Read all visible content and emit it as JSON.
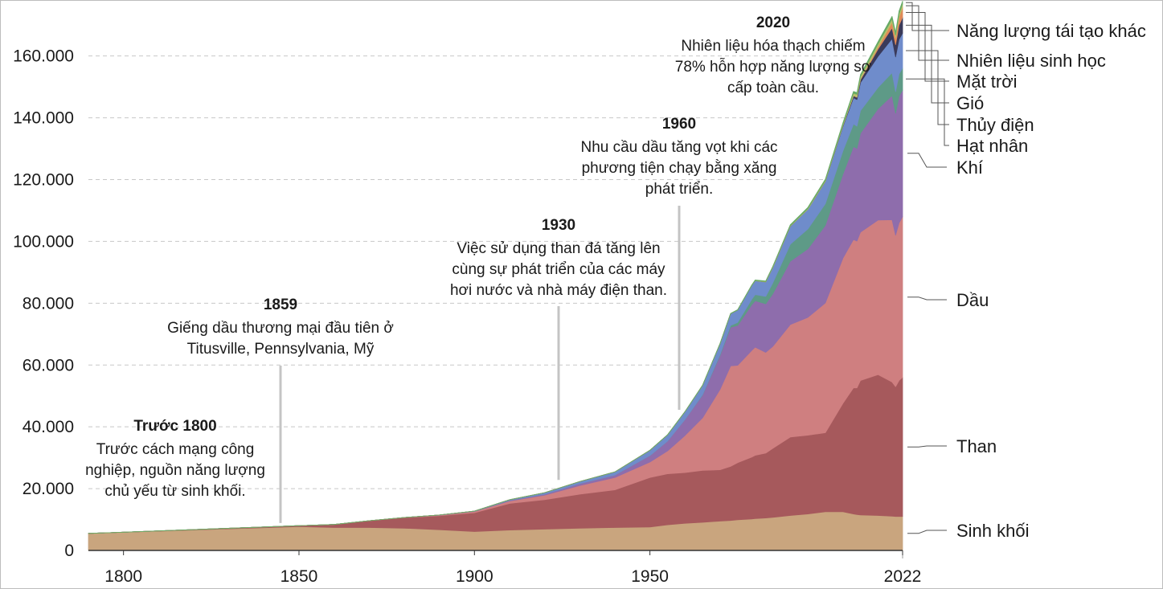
{
  "chart_data": {
    "type": "area",
    "stacked": true,
    "title": "",
    "xlabel": "",
    "ylabel": "",
    "xlim": [
      1790,
      2022
    ],
    "ylim": [
      0,
      175000
    ],
    "grid": "horizontal-dashed",
    "legend_placement": "right",
    "x_ticks": [
      {
        "value": 1800,
        "label": "1800"
      },
      {
        "value": 1850,
        "label": "1850"
      },
      {
        "value": 1900,
        "label": "1900"
      },
      {
        "value": 1950,
        "label": "1950"
      },
      {
        "value": 2022,
        "label": "2022"
      }
    ],
    "y_ticks": [
      {
        "value": 0,
        "label": "0"
      },
      {
        "value": 20000,
        "label": "20.000"
      },
      {
        "value": 40000,
        "label": "40.000"
      },
      {
        "value": 60000,
        "label": "60.000"
      },
      {
        "value": 80000,
        "label": "80.000"
      },
      {
        "value": 100000,
        "label": "100.000"
      },
      {
        "value": 120000,
        "label": "120.000"
      },
      {
        "value": 140000,
        "label": "140.000"
      },
      {
        "value": 160000,
        "label": "160.000"
      }
    ],
    "x": [
      1790,
      1800,
      1850,
      1860,
      1870,
      1880,
      1890,
      1900,
      1910,
      1920,
      1930,
      1940,
      1950,
      1955,
      1960,
      1965,
      1970,
      1973,
      1975,
      1979,
      1980,
      1983,
      1985,
      1990,
      1995,
      2000,
      2005,
      2008,
      2009,
      2010,
      2015,
      2019,
      2020,
      2021,
      2022
    ],
    "series": [
      {
        "name": "Sinh khối",
        "color": "#c9a57e",
        "values": [
          5500,
          5900,
          7700,
          7400,
          7400,
          7200,
          6700,
          6100,
          6600,
          6900,
          7200,
          7400,
          7600,
          8300,
          8800,
          9100,
          9500,
          9700,
          9900,
          10200,
          10300,
          10500,
          10700,
          11300,
          11800,
          12500,
          12500,
          11800,
          11600,
          11500,
          11300,
          11100,
          11000,
          11000,
          11000
        ]
      },
      {
        "name": "Than",
        "color": "#a6595c",
        "values": [
          0,
          0,
          300,
          1000,
          2200,
          3400,
          4500,
          6100,
          8600,
          9500,
          11000,
          12200,
          16000,
          16500,
          16400,
          16800,
          16600,
          17500,
          18500,
          20000,
          20500,
          21000,
          22300,
          25400,
          25500,
          25600,
          35100,
          40800,
          41000,
          43500,
          45600,
          43400,
          42000,
          44000,
          45000
        ]
      },
      {
        "name": "Dầu",
        "color": "#cf7f80",
        "values": [
          0,
          0,
          0,
          0,
          10,
          50,
          200,
          400,
          800,
          1500,
          2800,
          4000,
          5000,
          7400,
          12000,
          17000,
          26000,
          32500,
          31500,
          34500,
          35000,
          32600,
          33000,
          36400,
          38100,
          42000,
          47000,
          48000,
          47500,
          48000,
          50000,
          52500,
          49000,
          51000,
          52000
        ]
      },
      {
        "name": "Khí",
        "color": "#8e6dac",
        "values": [
          0,
          0,
          0,
          0,
          0,
          20,
          60,
          100,
          200,
          300,
          600,
          800,
          2100,
          3200,
          5200,
          7400,
          11000,
          12500,
          12900,
          14800,
          15000,
          15700,
          17000,
          20500,
          22200,
          25100,
          27200,
          30100,
          30000,
          32000,
          36000,
          40200,
          39500,
          41000,
          41000
        ]
      },
      {
        "name": "Hạt nhân",
        "color": "#5e9a87",
        "values": [
          0,
          0,
          0,
          0,
          0,
          0,
          0,
          0,
          0,
          0,
          0,
          0,
          0,
          0,
          10,
          100,
          300,
          600,
          1000,
          1700,
          2000,
          2400,
          3500,
          5500,
          6400,
          7000,
          7500,
          7300,
          7200,
          7300,
          6900,
          7400,
          7000,
          7200,
          7100
        ]
      },
      {
        "name": "Thủy điện",
        "color": "#6f8ccb",
        "values": [
          0,
          0,
          0,
          0,
          0,
          0,
          0,
          50,
          200,
          500,
          700,
          1000,
          1700,
          2000,
          2500,
          3000,
          3500,
          3800,
          4000,
          4500,
          4500,
          4700,
          5000,
          5800,
          6400,
          7200,
          7900,
          8500,
          8600,
          9100,
          10100,
          11000,
          11200,
          11200,
          11300
        ]
      },
      {
        "name": "Gió",
        "color": "#3a3a5a",
        "values": [
          0,
          0,
          0,
          0,
          0,
          0,
          0,
          0,
          0,
          0,
          0,
          0,
          0,
          0,
          0,
          0,
          0,
          0,
          0,
          0,
          0,
          0,
          0,
          10,
          20,
          80,
          280,
          600,
          720,
          900,
          2300,
          3500,
          4000,
          4600,
          5100
        ]
      },
      {
        "name": "Mặt trời",
        "color": "#e08a58",
        "values": [
          0,
          0,
          0,
          0,
          0,
          0,
          0,
          0,
          0,
          0,
          0,
          0,
          0,
          0,
          0,
          0,
          0,
          0,
          0,
          0,
          0,
          0,
          0,
          0,
          0,
          5,
          20,
          60,
          100,
          170,
          680,
          1800,
          2100,
          2600,
          3200
        ]
      },
      {
        "name": "Nhiên liệu sinh học",
        "color": "#b9c06a",
        "values": [
          0,
          0,
          0,
          0,
          0,
          0,
          0,
          0,
          0,
          0,
          0,
          0,
          0,
          0,
          0,
          0,
          0,
          0,
          0,
          0,
          50,
          100,
          150,
          200,
          230,
          250,
          400,
          800,
          850,
          900,
          1000,
          1100,
          1000,
          1100,
          1150
        ]
      },
      {
        "name": "Năng lượng tái tạo khác",
        "color": "#66aa66",
        "values": [
          0,
          0,
          0,
          0,
          0,
          0,
          0,
          0,
          0,
          0,
          0,
          0,
          20,
          40,
          60,
          80,
          100,
          120,
          130,
          160,
          180,
          200,
          230,
          300,
          350,
          400,
          480,
          560,
          580,
          620,
          750,
          850,
          870,
          880,
          900
        ]
      }
    ],
    "annotations": [
      {
        "year": 1800,
        "title": "Trước 1800",
        "lines": [
          "Trước cách mạng công",
          "nghiệp, nguồn năng lượng",
          "chủ yếu từ sinh khối."
        ]
      },
      {
        "year": 1859,
        "title": "1859",
        "lines": [
          "Giếng dầu thương mại đầu tiên ở",
          "Titusville, Pennsylvania, Mỹ"
        ]
      },
      {
        "year": 1930,
        "title": "1930",
        "lines": [
          "Việc sử dụng than đá tăng lên",
          "cùng sự phát triển của các máy",
          "hơi nước và nhà máy điện than."
        ]
      },
      {
        "year": 1960,
        "title": "1960",
        "lines": [
          "Nhu cầu dầu tăng vọt khi các",
          "phương tiện chạy bằng xăng",
          "phát triển."
        ]
      },
      {
        "year": 2020,
        "title": "2020",
        "lines": [
          "Nhiên liệu hóa thạch chiếm",
          "78% hỗn hợp năng lượng sơ",
          "cấp toàn cầu."
        ]
      }
    ]
  }
}
